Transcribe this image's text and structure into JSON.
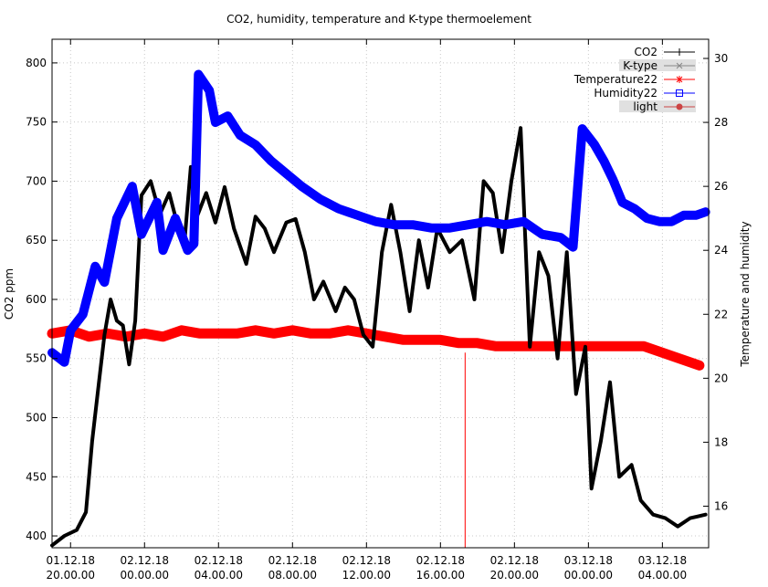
{
  "chart_data": {
    "type": "line",
    "title": "CO2, humidity, temperature and K-type thermoelement",
    "ylabel": "CO2 ppm",
    "y2label": "Temperature and humidity",
    "ylim": [
      390,
      820
    ],
    "y2lim": [
      14.7,
      30.6
    ],
    "yticks": [
      "400",
      "450",
      "500",
      "550",
      "600",
      "650",
      "700",
      "750",
      "800"
    ],
    "y2ticks": [
      "16",
      "18",
      "20",
      "22",
      "24",
      "26",
      "28",
      "30"
    ],
    "xlim": [
      "2018-12-01T19:00",
      "2018-12-03T06:30"
    ],
    "xticks": [
      {
        "at": "2018-12-01T20:00",
        "line1": "01.12.18",
        "line2": "20.00.00"
      },
      {
        "at": "2018-12-02T00:00",
        "line1": "02.12.18",
        "line2": "00.00.00"
      },
      {
        "at": "2018-12-02T04:00",
        "line1": "02.12.18",
        "line2": "04.00.00"
      },
      {
        "at": "2018-12-02T08:00",
        "line1": "02.12.18",
        "line2": "08.00.00"
      },
      {
        "at": "2018-12-02T12:00",
        "line1": "02.12.18",
        "line2": "12.00.00"
      },
      {
        "at": "2018-12-02T16:00",
        "line1": "02.12.18",
        "line2": "16.00.00"
      },
      {
        "at": "2018-12-02T20:00",
        "line1": "02.12.18",
        "line2": "20.00.00"
      },
      {
        "at": "2018-12-03T00:00",
        "line1": "03.12.18",
        "line2": "00.00.00"
      },
      {
        "at": "2018-12-03T04:00",
        "line1": "03.12.18",
        "line2": "04.00.00"
      }
    ],
    "grid": true,
    "legend_position": "top-right",
    "series": [
      {
        "name": "CO2",
        "axis": "y",
        "color": "#000000",
        "marker": "plus",
        "points": [
          [
            "2018-12-01T19:00",
            392
          ],
          [
            "2018-12-01T19:40",
            400
          ],
          [
            "2018-12-01T20:20",
            405
          ],
          [
            "2018-12-01T20:50",
            420
          ],
          [
            "2018-12-01T21:10",
            480
          ],
          [
            "2018-12-01T21:30",
            525
          ],
          [
            "2018-12-01T21:50",
            570
          ],
          [
            "2018-12-01T22:10",
            600
          ],
          [
            "2018-12-01T22:30",
            582
          ],
          [
            "2018-12-01T22:50",
            578
          ],
          [
            "2018-12-01T23:10",
            545
          ],
          [
            "2018-12-01T23:30",
            582
          ],
          [
            "2018-12-01T23:50",
            688
          ],
          [
            "2018-12-02T00:20",
            700
          ],
          [
            "2018-12-02T00:50",
            672
          ],
          [
            "2018-12-02T01:20",
            690
          ],
          [
            "2018-12-02T01:50",
            660
          ],
          [
            "2018-12-02T02:10",
            650
          ],
          [
            "2018-12-02T02:30",
            712
          ],
          [
            "2018-12-02T02:50",
            670
          ],
          [
            "2018-12-02T03:20",
            690
          ],
          [
            "2018-12-02T03:50",
            665
          ],
          [
            "2018-12-02T04:20",
            695
          ],
          [
            "2018-12-02T04:50",
            660
          ],
          [
            "2018-12-02T05:30",
            630
          ],
          [
            "2018-12-02T06:00",
            670
          ],
          [
            "2018-12-02T06:30",
            660
          ],
          [
            "2018-12-02T07:00",
            640
          ],
          [
            "2018-12-02T07:40",
            665
          ],
          [
            "2018-12-02T08:10",
            668
          ],
          [
            "2018-12-02T08:40",
            640
          ],
          [
            "2018-12-02T09:10",
            600
          ],
          [
            "2018-12-02T09:40",
            615
          ],
          [
            "2018-12-02T10:20",
            590
          ],
          [
            "2018-12-02T10:50",
            610
          ],
          [
            "2018-12-02T11:20",
            600
          ],
          [
            "2018-12-02T11:50",
            570
          ],
          [
            "2018-12-02T12:20",
            560
          ],
          [
            "2018-12-02T12:50",
            640
          ],
          [
            "2018-12-02T13:20",
            680
          ],
          [
            "2018-12-02T13:50",
            640
          ],
          [
            "2018-12-02T14:20",
            590
          ],
          [
            "2018-12-02T14:50",
            650
          ],
          [
            "2018-12-02T15:20",
            610
          ],
          [
            "2018-12-02T15:50",
            660
          ],
          [
            "2018-12-02T16:30",
            640
          ],
          [
            "2018-12-02T17:10",
            650
          ],
          [
            "2018-12-02T17:50",
            600
          ],
          [
            "2018-12-02T18:20",
            700
          ],
          [
            "2018-12-02T18:50",
            690
          ],
          [
            "2018-12-02T19:20",
            640
          ],
          [
            "2018-12-02T19:50",
            700
          ],
          [
            "2018-12-02T20:20",
            745
          ],
          [
            "2018-12-02T20:50",
            560
          ],
          [
            "2018-12-02T21:20",
            640
          ],
          [
            "2018-12-02T21:50",
            620
          ],
          [
            "2018-12-02T22:20",
            550
          ],
          [
            "2018-12-02T22:50",
            640
          ],
          [
            "2018-12-02T23:20",
            520
          ],
          [
            "2018-12-02T23:50",
            560
          ],
          [
            "2018-12-03T00:10",
            440
          ],
          [
            "2018-12-03T00:40",
            480
          ],
          [
            "2018-12-03T01:10",
            530
          ],
          [
            "2018-12-03T01:40",
            450
          ],
          [
            "2018-12-03T02:20",
            460
          ],
          [
            "2018-12-03T02:50",
            430
          ],
          [
            "2018-12-03T03:30",
            418
          ],
          [
            "2018-12-03T04:10",
            415
          ],
          [
            "2018-12-03T04:50",
            408
          ],
          [
            "2018-12-03T05:30",
            415
          ],
          [
            "2018-12-03T06:20",
            418
          ]
        ]
      },
      {
        "name": "K-type",
        "axis": "y2",
        "color": "#888888",
        "marker": "x",
        "points": []
      },
      {
        "name": "Temperature22",
        "axis": "y2",
        "color": "#ff0000",
        "marker": "star",
        "points": [
          [
            "2018-12-01T19:00",
            21.4
          ],
          [
            "2018-12-01T20:00",
            21.5
          ],
          [
            "2018-12-01T21:00",
            21.3
          ],
          [
            "2018-12-01T22:00",
            21.4
          ],
          [
            "2018-12-01T23:00",
            21.3
          ],
          [
            "2018-12-02T00:00",
            21.4
          ],
          [
            "2018-12-02T01:00",
            21.3
          ],
          [
            "2018-12-02T02:00",
            21.5
          ],
          [
            "2018-12-02T03:00",
            21.4
          ],
          [
            "2018-12-02T04:00",
            21.4
          ],
          [
            "2018-12-02T05:00",
            21.4
          ],
          [
            "2018-12-02T06:00",
            21.5
          ],
          [
            "2018-12-02T07:00",
            21.4
          ],
          [
            "2018-12-02T08:00",
            21.5
          ],
          [
            "2018-12-02T09:00",
            21.4
          ],
          [
            "2018-12-02T10:00",
            21.4
          ],
          [
            "2018-12-02T11:00",
            21.5
          ],
          [
            "2018-12-02T12:00",
            21.4
          ],
          [
            "2018-12-02T13:00",
            21.3
          ],
          [
            "2018-12-02T14:00",
            21.2
          ],
          [
            "2018-12-02T15:00",
            21.2
          ],
          [
            "2018-12-02T16:00",
            21.2
          ],
          [
            "2018-12-02T17:00",
            21.1
          ],
          [
            "2018-12-02T18:00",
            21.1
          ],
          [
            "2018-12-02T19:00",
            21.0
          ],
          [
            "2018-12-02T20:00",
            21.0
          ],
          [
            "2018-12-02T21:00",
            21.0
          ],
          [
            "2018-12-02T22:00",
            21.0
          ],
          [
            "2018-12-02T23:00",
            21.0
          ],
          [
            "2018-12-03T00:00",
            21.0
          ],
          [
            "2018-12-03T01:00",
            21.0
          ],
          [
            "2018-12-03T02:00",
            21.0
          ],
          [
            "2018-12-03T03:00",
            21.0
          ],
          [
            "2018-12-03T04:00",
            20.8
          ],
          [
            "2018-12-03T05:00",
            20.6
          ],
          [
            "2018-12-03T06:00",
            20.4
          ]
        ]
      },
      {
        "name": "Humidity22",
        "axis": "y2",
        "color": "#0000ff",
        "marker": "square",
        "points": [
          [
            "2018-12-01T19:00",
            20.8
          ],
          [
            "2018-12-01T19:40",
            20.5
          ],
          [
            "2018-12-01T20:00",
            21.5
          ],
          [
            "2018-12-01T20:40",
            22.0
          ],
          [
            "2018-12-01T21:20",
            23.5
          ],
          [
            "2018-12-01T21:50",
            23.0
          ],
          [
            "2018-12-01T22:30",
            25.0
          ],
          [
            "2018-12-01T23:20",
            26.0
          ],
          [
            "2018-12-01T23:50",
            24.5
          ],
          [
            "2018-12-02T00:40",
            25.5
          ],
          [
            "2018-12-02T01:00",
            24.0
          ],
          [
            "2018-12-02T01:40",
            25.0
          ],
          [
            "2018-12-02T02:20",
            24.0
          ],
          [
            "2018-12-02T02:40",
            24.2
          ],
          [
            "2018-12-02T02:55",
            29.5
          ],
          [
            "2018-12-02T03:30",
            29.0
          ],
          [
            "2018-12-02T03:50",
            28.0
          ],
          [
            "2018-12-02T04:30",
            28.2
          ],
          [
            "2018-12-02T05:10",
            27.6
          ],
          [
            "2018-12-02T06:00",
            27.3
          ],
          [
            "2018-12-02T06:50",
            26.8
          ],
          [
            "2018-12-02T07:40",
            26.4
          ],
          [
            "2018-12-02T08:30",
            26.0
          ],
          [
            "2018-12-02T09:30",
            25.6
          ],
          [
            "2018-12-02T10:30",
            25.3
          ],
          [
            "2018-12-02T11:30",
            25.1
          ],
          [
            "2018-12-02T12:30",
            24.9
          ],
          [
            "2018-12-02T13:30",
            24.8
          ],
          [
            "2018-12-02T14:30",
            24.8
          ],
          [
            "2018-12-02T15:30",
            24.7
          ],
          [
            "2018-12-02T16:30",
            24.7
          ],
          [
            "2018-12-02T17:30",
            24.8
          ],
          [
            "2018-12-02T18:30",
            24.9
          ],
          [
            "2018-12-02T19:30",
            24.8
          ],
          [
            "2018-12-02T20:30",
            24.9
          ],
          [
            "2018-12-02T21:30",
            24.5
          ],
          [
            "2018-12-02T22:30",
            24.4
          ],
          [
            "2018-12-02T23:10",
            24.1
          ],
          [
            "2018-12-02T23:40",
            27.8
          ],
          [
            "2018-12-03T00:20",
            27.3
          ],
          [
            "2018-12-03T00:50",
            26.8
          ],
          [
            "2018-12-03T01:20",
            26.2
          ],
          [
            "2018-12-03T01:50",
            25.5
          ],
          [
            "2018-12-03T02:30",
            25.3
          ],
          [
            "2018-12-03T03:10",
            25.0
          ],
          [
            "2018-12-03T03:50",
            24.9
          ],
          [
            "2018-12-03T04:30",
            24.9
          ],
          [
            "2018-12-03T05:10",
            25.1
          ],
          [
            "2018-12-03T05:50",
            25.1
          ],
          [
            "2018-12-03T06:20",
            25.2
          ]
        ]
      },
      {
        "name": "light",
        "axis": "y2",
        "color": "#cc4444",
        "marker": "circle",
        "points": []
      }
    ],
    "annotations": [
      {
        "type": "vline",
        "at": "2018-12-02T17:20",
        "from_y2": 14.7,
        "to_y2": 20.8,
        "color": "#ff0000"
      }
    ]
  }
}
